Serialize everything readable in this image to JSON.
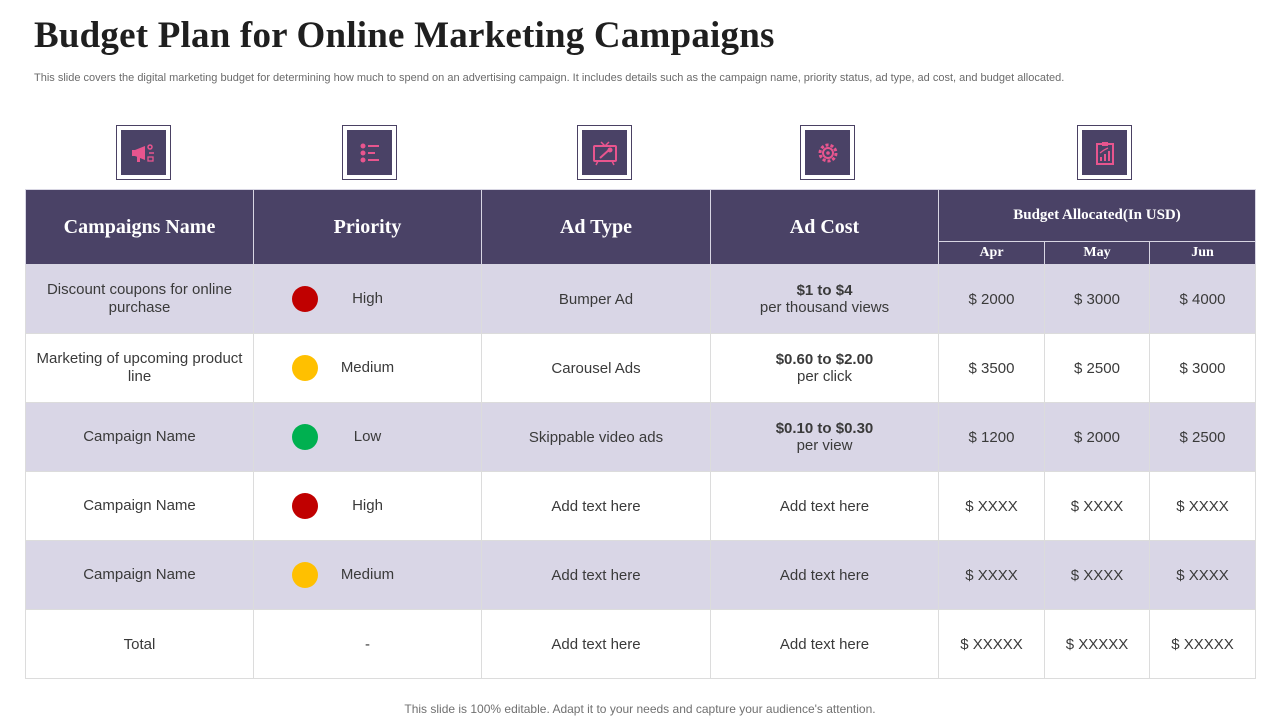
{
  "page": {
    "title": "Budget Plan for Online Marketing Campaigns",
    "subtitle": "This slide covers the digital marketing budget for determining how much to spend on an advertising campaign. It includes details such as the campaign name, priority status, ad type,  ad cost, and budget allocated.",
    "footer": "This slide is 100% editable. Adapt it to your needs and capture your audience's attention."
  },
  "icons": [
    "megaphone-icon",
    "checklist-icon",
    "tv-ad-icon",
    "gear-icon",
    "report-chart-icon"
  ],
  "colors": {
    "header_bg": "#4a4266",
    "shaded_row": "#d9d6e6",
    "icon_pink": "#e8558e",
    "priority_high": "#c00000",
    "priority_medium": "#ffc000",
    "priority_low": "#00b050"
  },
  "table": {
    "headers": {
      "campaign": "Campaigns Name",
      "priority": "Priority",
      "ad_type": "Ad Type",
      "ad_cost": "Ad Cost",
      "budget": "Budget Allocated(In  USD)",
      "months": [
        "Apr",
        "May",
        "Jun"
      ]
    },
    "rows": [
      {
        "campaign": "Discount coupons for online purchase",
        "priority": "High",
        "priority_color": "#c00000",
        "ad_type": "Bumper Ad",
        "cost_main": "$1 to $4",
        "cost_sub": "per thousand views",
        "apr": "$ 2000",
        "may": "$ 3000",
        "jun": "$ 4000"
      },
      {
        "campaign": "Marketing of upcoming product line",
        "priority": "Medium",
        "priority_color": "#ffc000",
        "ad_type": "Carousel Ads",
        "cost_main": "$0.60 to $2.00",
        "cost_sub": "per click",
        "apr": "$ 3500",
        "may": "$ 2500",
        "jun": "$ 3000"
      },
      {
        "campaign": "Campaign Name",
        "priority": "Low",
        "priority_color": "#00b050",
        "ad_type": "Skippable video ads",
        "cost_main": "$0.10 to $0.30",
        "cost_sub": "per view",
        "apr": "$ 1200",
        "may": "$ 2000",
        "jun": "$ 2500"
      },
      {
        "campaign": "Campaign Name",
        "priority": "High",
        "priority_color": "#c00000",
        "ad_type": "Add text here",
        "cost_plain": "Add text here",
        "apr": "$ XXXX",
        "may": "$ XXXX",
        "jun": "$ XXXX"
      },
      {
        "campaign": "Campaign Name",
        "priority": "Medium",
        "priority_color": "#ffc000",
        "ad_type": "Add text here",
        "cost_plain": "Add text here",
        "apr": "$ XXXX",
        "may": "$ XXXX",
        "jun": "$ XXXX"
      }
    ],
    "total": {
      "label": "Total",
      "priority": "-",
      "ad_type": "Add text here",
      "ad_cost": "Add text here",
      "apr": "$ XXXXX",
      "may": "$ XXXXX",
      "jun": "$ XXXXX"
    }
  }
}
